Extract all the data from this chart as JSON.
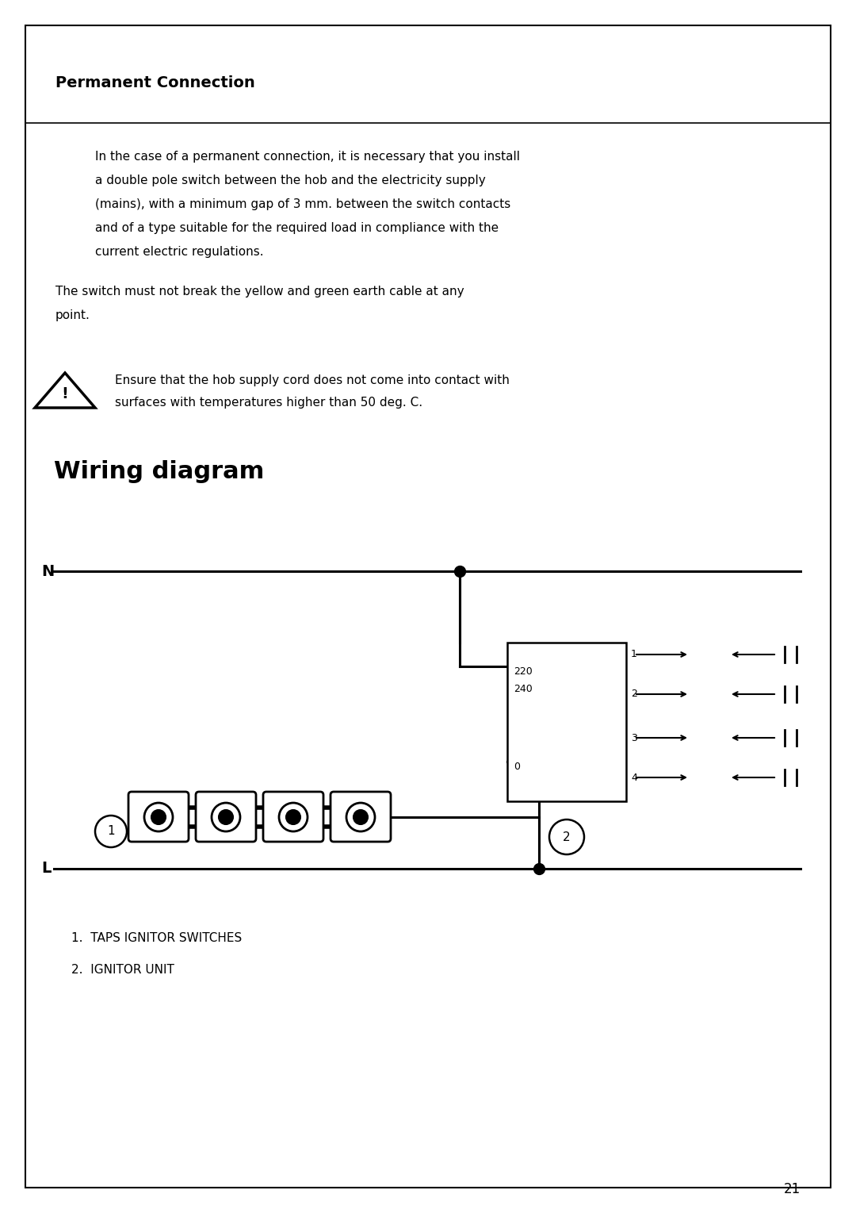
{
  "background_color": "#ffffff",
  "border_color": "#000000",
  "page_number": "21",
  "section_title": "Permanent Connection",
  "para1_line1": "In the case of a permanent connection, it is necessary that you install",
  "para1_line2": "a double pole switch between the hob and the electricity supply",
  "para1_line3": "(mains), with a minimum gap of 3 mm. between the switch contacts",
  "para1_line4": "and of a type suitable for the required load in compliance with the",
  "para1_line5": "current electric regulations.",
  "para2_line1": "The switch must not break the yellow and green earth cable at any",
  "para2_line2": "point.",
  "warning_line1": "Ensure that the hob supply cord does not come into contact with",
  "warning_line2": "surfaces with temperatures higher than 50 deg. C.",
  "diagram_title": "Wiring diagram",
  "legend1": "1.  TAPS IGNITOR SWITCHES",
  "legend2": "2.  IGNITOR UNIT",
  "box_labels_left": [
    "220",
    "240",
    "",
    "0"
  ],
  "box_labels_right": [
    "1",
    "2",
    "3",
    "4"
  ]
}
